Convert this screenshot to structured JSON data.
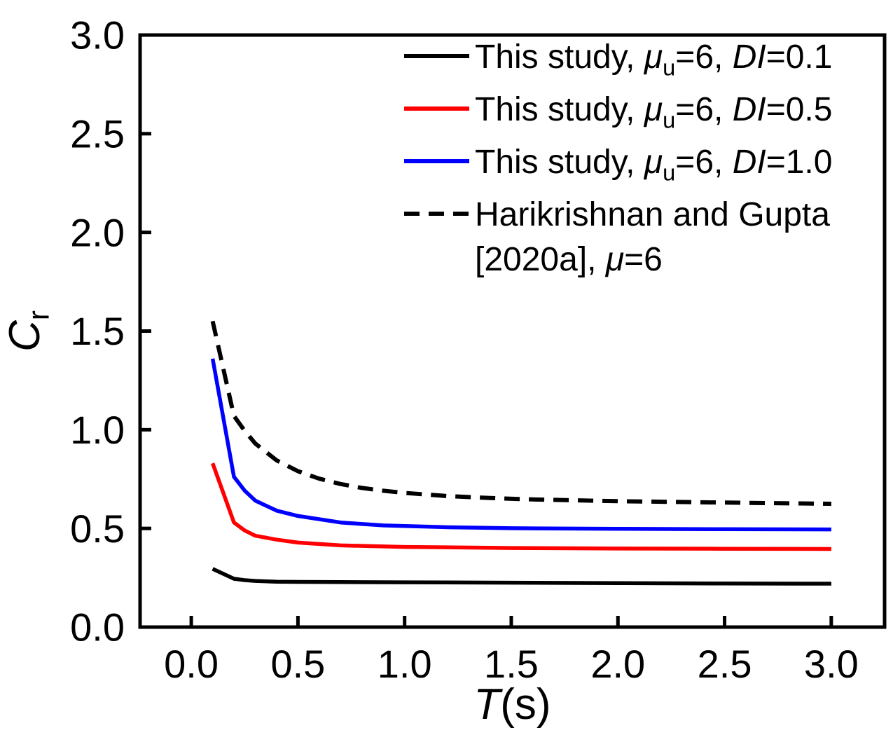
{
  "figure": {
    "background": "#ffffff",
    "axis_color": "#000000"
  },
  "chart_data": {
    "type": "line",
    "title": "",
    "xlabel": "T(s)",
    "ylabel": "Cr",
    "xlabel_parts": [
      {
        "t": "T",
        "italic": true
      },
      {
        "t": "(s)"
      }
    ],
    "ylabel_parts": [
      {
        "t": "C",
        "italic": true
      },
      {
        "t": "r",
        "sub": true
      }
    ],
    "xlim": [
      -0.24,
      3.25
    ],
    "ylim": [
      0,
      3.0
    ],
    "grid": false,
    "legend_position": "top-right-inside",
    "x_ticks": {
      "values": [
        0,
        0.5,
        1.0,
        1.5,
        2.0,
        2.5,
        3.0
      ],
      "labels": [
        "0.0",
        "0.5",
        "1.0",
        "1.5",
        "2.0",
        "2.5",
        "3.0"
      ]
    },
    "y_ticks": {
      "values": [
        0,
        0.5,
        1.0,
        1.5,
        2.0,
        2.5,
        3.0
      ],
      "labels": [
        "0.0",
        "0.5",
        "1.0",
        "1.5",
        "2.0",
        "2.5",
        "3.0"
      ]
    },
    "series": [
      {
        "name": "This study, mu_u=6, DI=0.1",
        "color": "#000000",
        "style": "solid",
        "label_lines": [
          [
            {
              "t": "This study, "
            },
            {
              "t": "μ",
              "italic": true
            },
            {
              "t": "u",
              "sub": true
            },
            {
              "t": "=6, "
            },
            {
              "t": "DI",
              "italic": true
            },
            {
              "t": "=0.1"
            }
          ]
        ],
        "points": [
          [
            0.1,
            0.295
          ],
          [
            0.2,
            0.245
          ],
          [
            0.25,
            0.238
          ],
          [
            0.3,
            0.234
          ],
          [
            0.4,
            0.23
          ],
          [
            0.5,
            0.229
          ],
          [
            0.7,
            0.228
          ],
          [
            1.0,
            0.227
          ],
          [
            1.5,
            0.225
          ],
          [
            2.0,
            0.223
          ],
          [
            2.5,
            0.221
          ],
          [
            3.0,
            0.22
          ]
        ]
      },
      {
        "name": "This study, mu_u=6, DI=0.5",
        "color": "#ff0000",
        "style": "solid",
        "label_lines": [
          [
            {
              "t": "This study, "
            },
            {
              "t": "μ",
              "italic": true
            },
            {
              "t": "u",
              "sub": true
            },
            {
              "t": "=6, "
            },
            {
              "t": "DI",
              "italic": true
            },
            {
              "t": "=0.5"
            }
          ]
        ],
        "points": [
          [
            0.1,
            0.83
          ],
          [
            0.2,
            0.53
          ],
          [
            0.25,
            0.49
          ],
          [
            0.3,
            0.463
          ],
          [
            0.4,
            0.443
          ],
          [
            0.5,
            0.428
          ],
          [
            0.7,
            0.414
          ],
          [
            1.0,
            0.406
          ],
          [
            1.5,
            0.401
          ],
          [
            2.0,
            0.398
          ],
          [
            2.5,
            0.397
          ],
          [
            3.0,
            0.396
          ]
        ]
      },
      {
        "name": "This study, mu_u=6, DI=1.0",
        "color": "#0000ff",
        "style": "solid",
        "label_lines": [
          [
            {
              "t": "This study, "
            },
            {
              "t": "μ",
              "italic": true
            },
            {
              "t": "u",
              "sub": true
            },
            {
              "t": "=6, "
            },
            {
              "t": "DI",
              "italic": true
            },
            {
              "t": "=1.0"
            }
          ]
        ],
        "points": [
          [
            0.1,
            1.36
          ],
          [
            0.2,
            0.762
          ],
          [
            0.25,
            0.692
          ],
          [
            0.3,
            0.641
          ],
          [
            0.4,
            0.59
          ],
          [
            0.5,
            0.563
          ],
          [
            0.7,
            0.53
          ],
          [
            0.9,
            0.515
          ],
          [
            1.2,
            0.506
          ],
          [
            1.5,
            0.501
          ],
          [
            2.0,
            0.498
          ],
          [
            2.5,
            0.496
          ],
          [
            3.0,
            0.495
          ]
        ]
      },
      {
        "name": "Harikrishnan and Gupta [2020a], mu=6",
        "color": "#000000",
        "style": "dashed",
        "label_lines": [
          [
            {
              "t": "Harikrishnan and Gupta"
            }
          ],
          [
            {
              "t": "[2020a], "
            },
            {
              "t": "μ",
              "italic": true
            },
            {
              "t": "=6"
            }
          ]
        ],
        "points": [
          [
            0.1,
            1.55
          ],
          [
            0.2,
            1.07
          ],
          [
            0.25,
            0.995
          ],
          [
            0.3,
            0.93
          ],
          [
            0.4,
            0.845
          ],
          [
            0.5,
            0.79
          ],
          [
            0.6,
            0.752
          ],
          [
            0.7,
            0.725
          ],
          [
            0.8,
            0.705
          ],
          [
            0.9,
            0.691
          ],
          [
            1.0,
            0.68
          ],
          [
            1.2,
            0.664
          ],
          [
            1.4,
            0.654
          ],
          [
            1.6,
            0.647
          ],
          [
            2.0,
            0.638
          ],
          [
            2.5,
            0.631
          ],
          [
            3.0,
            0.625
          ]
        ]
      }
    ]
  }
}
